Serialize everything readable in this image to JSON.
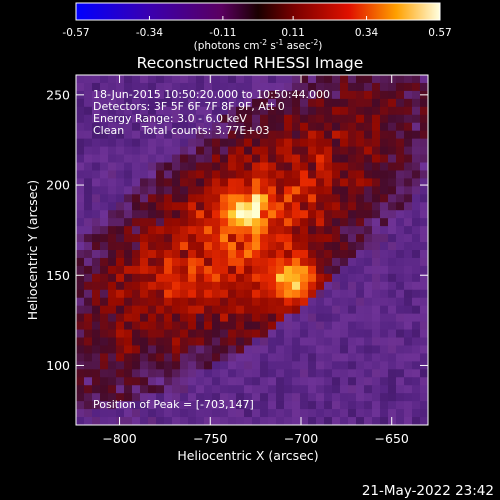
{
  "colorbar": {
    "tick_labels": [
      "-0.57",
      "-0.34",
      "-0.11",
      "0.11",
      "0.34",
      "0.57"
    ],
    "tick_values": [
      -0.57,
      -0.34,
      -0.11,
      0.11,
      0.34,
      0.57
    ],
    "range": [
      -0.57,
      0.57
    ],
    "units_prefix": "(photons cm",
    "units_sup1": "-2",
    "units_mid1": " s",
    "units_sup2": "-1",
    "units_mid2": " asec",
    "units_sup3": "-2",
    "units_suffix": ")"
  },
  "image": {
    "title": "Reconstructed RHESSI Image",
    "info_line1": "18-Jun-2015 10:50:20.000 to 10:50:44.000",
    "info_line2": "Detectors: 3F 5F 6F 7F 8F 9F, Att 0",
    "info_line3": "Energy Range: 3.0 - 6.0 keV",
    "info_line4": "Clean     Total counts: 3.77E+03",
    "peak_label": "Position of Peak = [-703,147]",
    "colormap": "red-temperature",
    "sources": [
      {
        "x": -703,
        "y": 147,
        "intensity": 0.57
      },
      {
        "x": -730,
        "y": 183,
        "intensity": 0.42
      }
    ]
  },
  "axes": {
    "xlabel": "Heliocentric X (arcsec)",
    "ylabel": "Heliocentric Y (arcsec)",
    "xlim": [
      -824,
      -630
    ],
    "ylim": [
      67,
      261
    ],
    "x_ticks": [
      -800,
      -750,
      -700,
      -650
    ],
    "x_tick_labels": [
      "−800",
      "−750",
      "−700",
      "−650"
    ],
    "y_ticks": [
      100,
      150,
      200,
      250
    ],
    "y_tick_labels": [
      "100",
      "150",
      "200",
      "250"
    ]
  },
  "footer": {
    "timestamp": "21-May-2022 23:42"
  }
}
